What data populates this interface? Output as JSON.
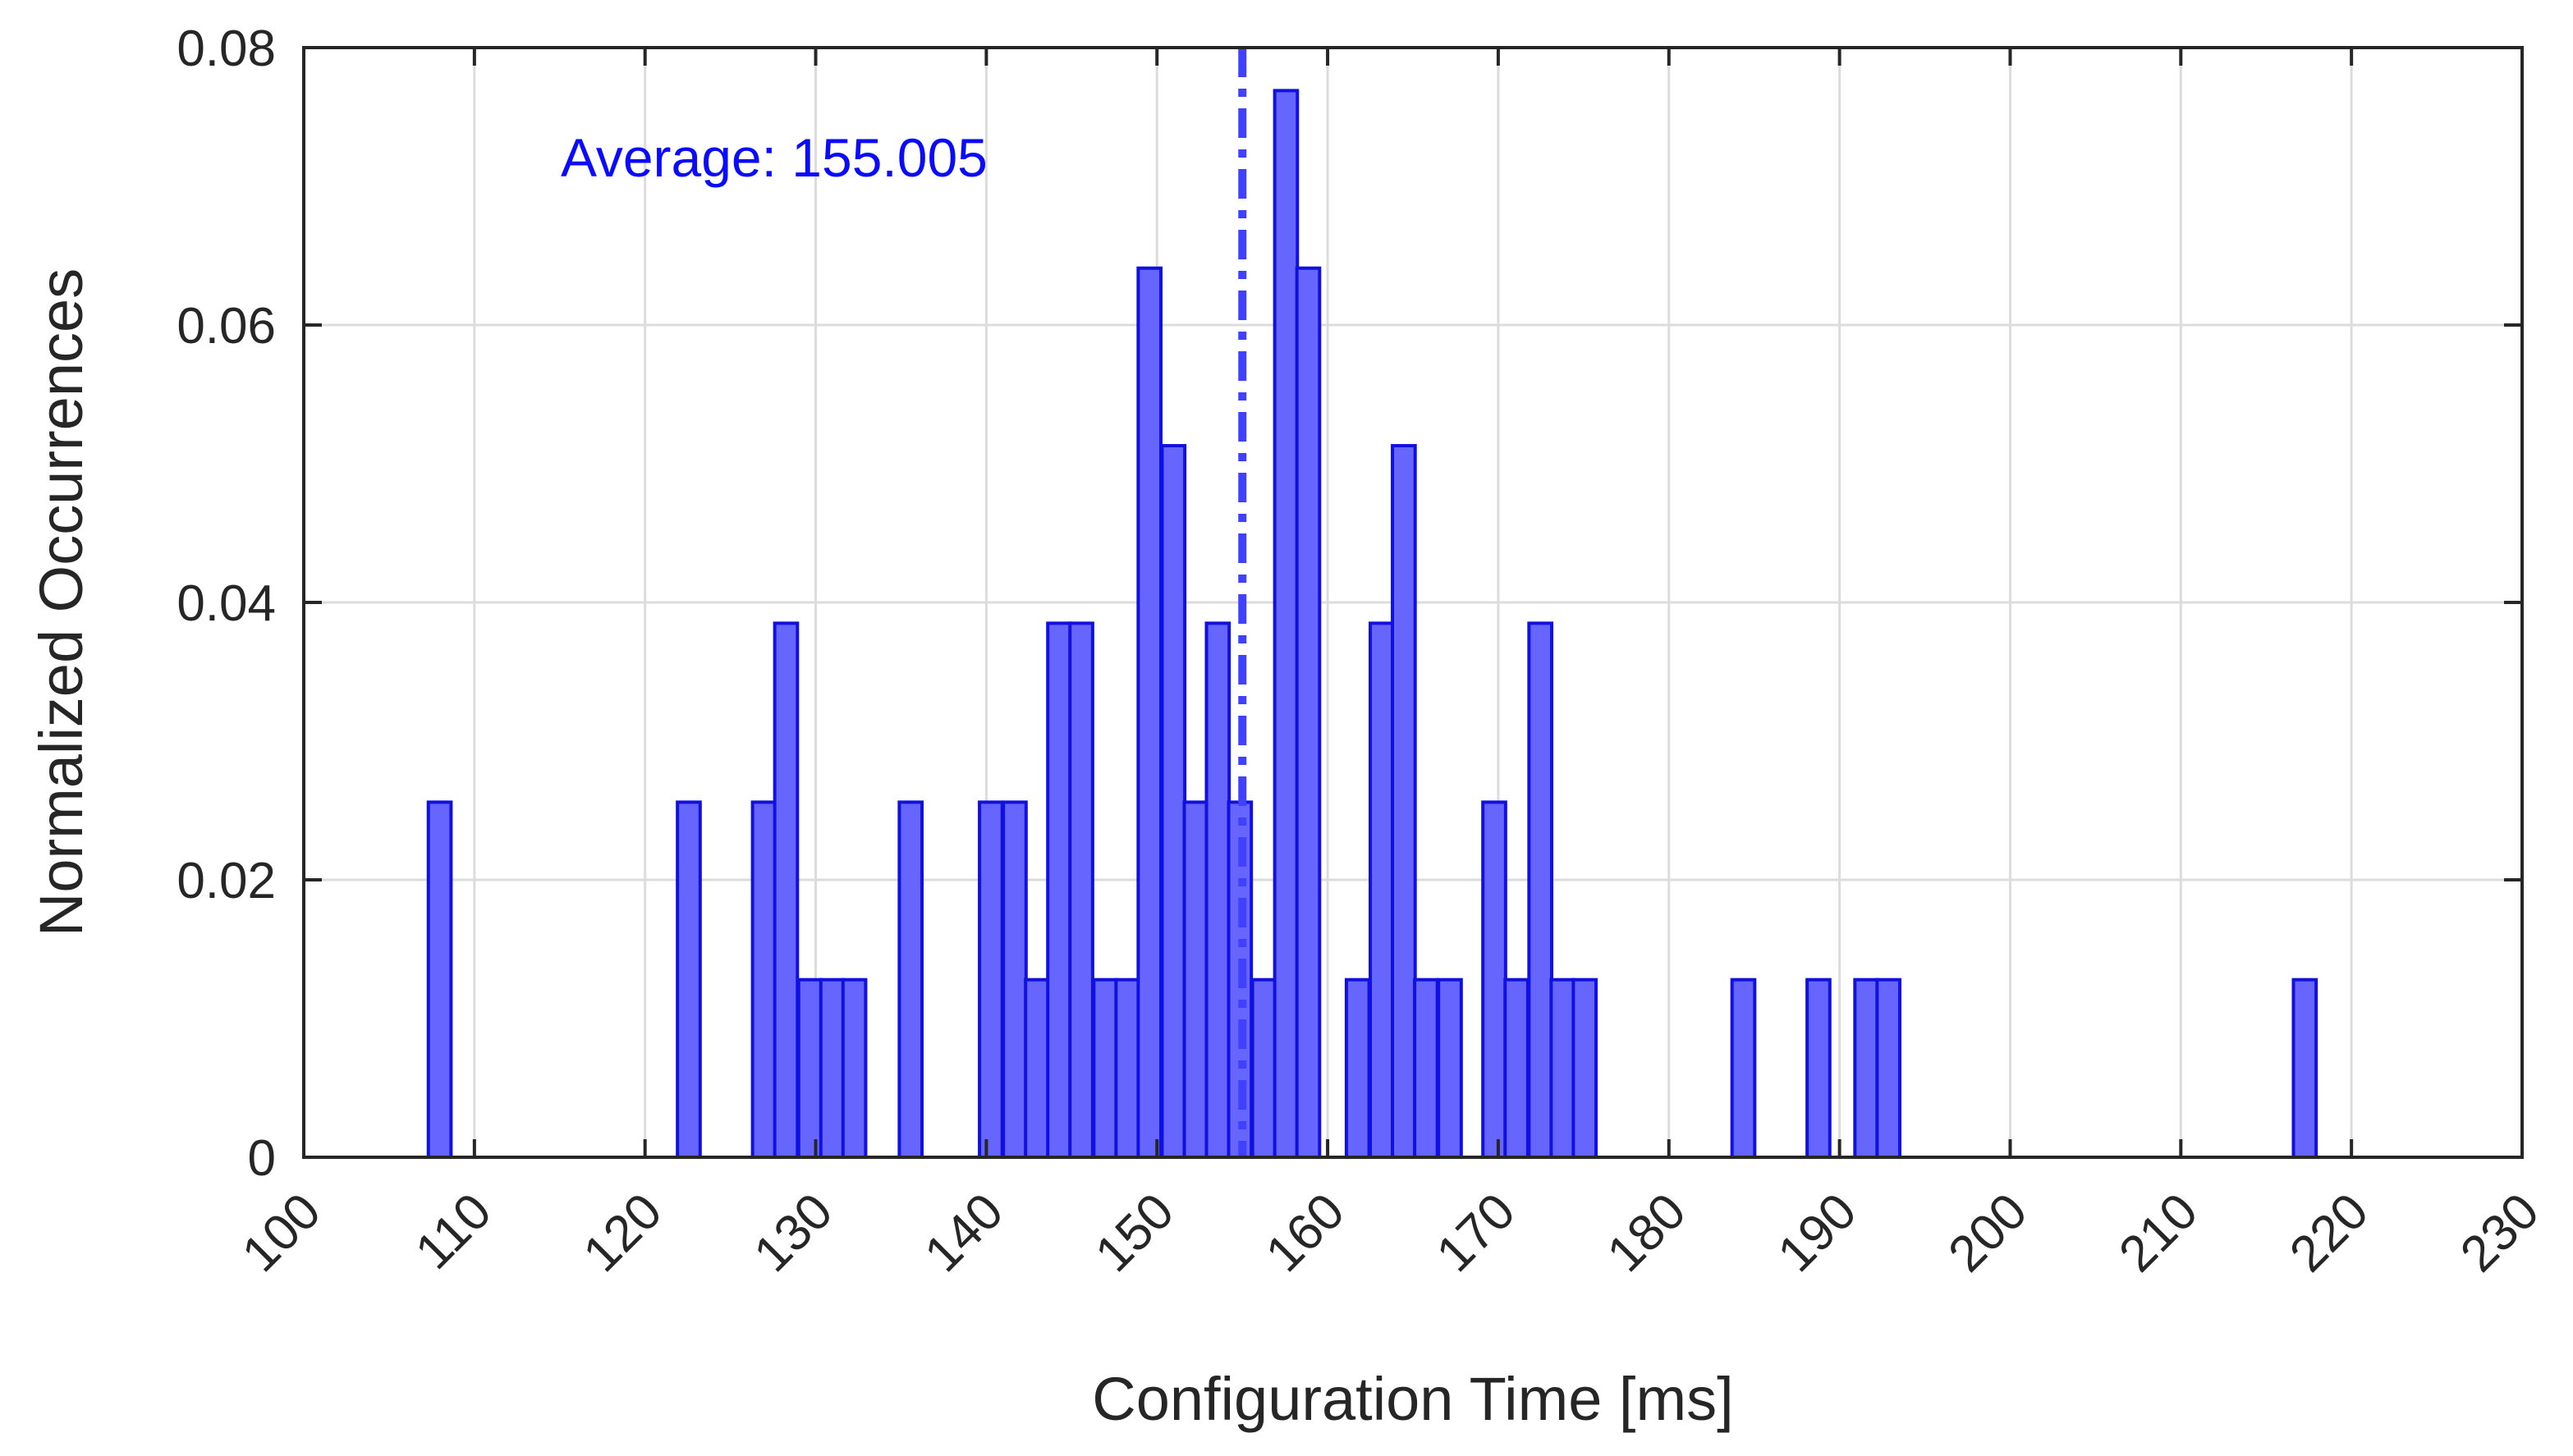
{
  "chart_data": {
    "type": "bar",
    "xlabel": "Configuration Time [ms]",
    "ylabel": "Normalized Occurrences",
    "xlim": [
      100,
      230
    ],
    "ylim": [
      0,
      0.08
    ],
    "x_ticks": [
      100,
      110,
      120,
      130,
      140,
      150,
      160,
      170,
      180,
      190,
      200,
      210,
      220,
      230
    ],
    "y_ticks": [
      0,
      0.02,
      0.04,
      0.06,
      0.08
    ],
    "y_tick_labels": [
      "0",
      "0.02",
      "0.04",
      "0.06",
      "0.08"
    ],
    "grid": true,
    "bin_width": 1.33,
    "bins": [
      {
        "x": 107.3,
        "value": 0.0256
      },
      {
        "x": 121.9,
        "value": 0.0256
      },
      {
        "x": 126.3,
        "value": 0.0256
      },
      {
        "x": 127.6,
        "value": 0.0385
      },
      {
        "x": 129.0,
        "value": 0.0128
      },
      {
        "x": 130.3,
        "value": 0.0128
      },
      {
        "x": 131.6,
        "value": 0.0128
      },
      {
        "x": 134.9,
        "value": 0.0256
      },
      {
        "x": 139.6,
        "value": 0.0256
      },
      {
        "x": 141.0,
        "value": 0.0256
      },
      {
        "x": 142.3,
        "value": 0.0128
      },
      {
        "x": 143.6,
        "value": 0.0385
      },
      {
        "x": 144.9,
        "value": 0.0385
      },
      {
        "x": 146.3,
        "value": 0.0128
      },
      {
        "x": 147.6,
        "value": 0.0128
      },
      {
        "x": 148.9,
        "value": 0.0641
      },
      {
        "x": 150.3,
        "value": 0.0513
      },
      {
        "x": 151.6,
        "value": 0.0256
      },
      {
        "x": 152.9,
        "value": 0.0385
      },
      {
        "x": 154.2,
        "value": 0.0256
      },
      {
        "x": 155.6,
        "value": 0.0128
      },
      {
        "x": 156.9,
        "value": 0.0769
      },
      {
        "x": 158.2,
        "value": 0.0641
      },
      {
        "x": 161.1,
        "value": 0.0128
      },
      {
        "x": 162.5,
        "value": 0.0385
      },
      {
        "x": 163.8,
        "value": 0.0513
      },
      {
        "x": 165.1,
        "value": 0.0128
      },
      {
        "x": 166.5,
        "value": 0.0128
      },
      {
        "x": 169.1,
        "value": 0.0256
      },
      {
        "x": 170.4,
        "value": 0.0128
      },
      {
        "x": 171.8,
        "value": 0.0385
      },
      {
        "x": 173.1,
        "value": 0.0128
      },
      {
        "x": 174.4,
        "value": 0.0128
      },
      {
        "x": 183.7,
        "value": 0.0128
      },
      {
        "x": 188.1,
        "value": 0.0128
      },
      {
        "x": 190.9,
        "value": 0.0128
      },
      {
        "x": 192.2,
        "value": 0.0128
      },
      {
        "x": 216.6,
        "value": 0.0128
      }
    ],
    "average_line": {
      "x": 155.005,
      "label": "Average: 155.005"
    }
  }
}
